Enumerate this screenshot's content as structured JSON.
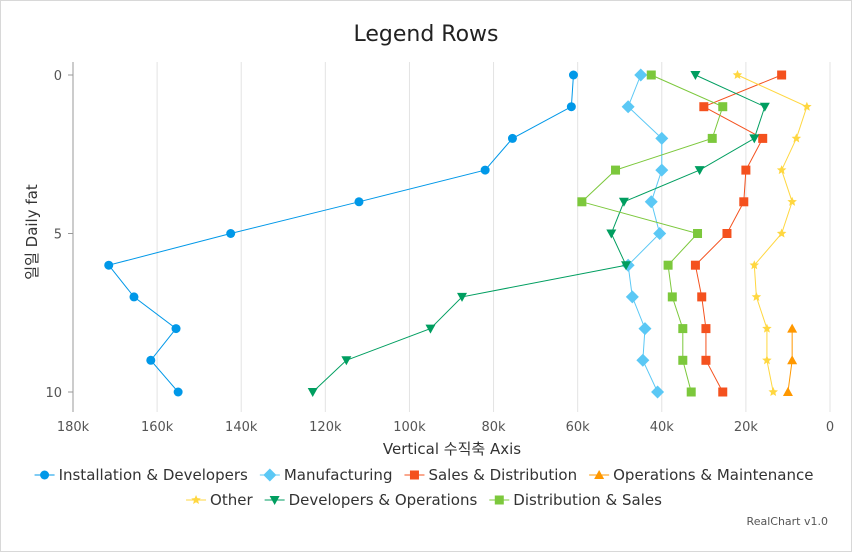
{
  "chart_data": {
    "type": "line",
    "title": "Legend Rows",
    "xlabel": "Vertical 수직축 Axis",
    "ylabel": "일일 Daily fat",
    "xlim": [
      180000,
      0
    ],
    "xreversed": true,
    "ylim": [
      0,
      10
    ],
    "yreversed": true,
    "xticks": [
      "180k",
      "160k",
      "140k",
      "120k",
      "100k",
      "80k",
      "60k",
      "40k",
      "20k",
      "0"
    ],
    "xtick_values": [
      180000,
      160000,
      140000,
      120000,
      100000,
      80000,
      60000,
      40000,
      20000,
      0
    ],
    "yticks": [
      "0",
      "5",
      "10"
    ],
    "ytick_values": [
      0,
      5,
      10
    ],
    "grid": "vertical",
    "legend_position": "bottom",
    "series": [
      {
        "name": "Installation & Developers",
        "color": "#0098e8",
        "marker": "circle",
        "points": [
          [
            61000,
            0
          ],
          [
            61500,
            1
          ],
          [
            75500,
            2
          ],
          [
            82000,
            3
          ],
          [
            112000,
            4
          ],
          [
            142500,
            5
          ],
          [
            171500,
            6
          ],
          [
            165500,
            7
          ],
          [
            155500,
            8
          ],
          [
            161500,
            9
          ],
          [
            155000,
            10
          ]
        ]
      },
      {
        "name": "Manufacturing",
        "color": "#5bc8f5",
        "marker": "diamond",
        "points": [
          [
            45000,
            0
          ],
          [
            48000,
            1
          ],
          [
            40000,
            2
          ],
          [
            40000,
            3
          ],
          [
            42500,
            4
          ],
          [
            40500,
            5
          ],
          [
            48000,
            6
          ],
          [
            47000,
            7
          ],
          [
            44000,
            8
          ],
          [
            44500,
            9
          ],
          [
            41000,
            10
          ]
        ]
      },
      {
        "name": "Sales & Distribution",
        "color": "#f4511e",
        "marker": "square",
        "points": [
          [
            11500,
            0
          ],
          [
            30000,
            1
          ],
          [
            16000,
            2
          ],
          [
            20000,
            3
          ],
          [
            20500,
            4
          ],
          [
            24500,
            5
          ],
          [
            32000,
            6
          ],
          [
            30500,
            7
          ],
          [
            29500,
            8
          ],
          [
            29500,
            9
          ],
          [
            25500,
            10
          ]
        ]
      },
      {
        "name": "Operations & Maintenance",
        "color": "#ff9800",
        "marker": "triangle-up",
        "points": [
          [
            9000,
            8
          ],
          [
            9000,
            9
          ],
          [
            10000,
            10
          ]
        ]
      },
      {
        "name": "Other",
        "color": "#ffd740",
        "marker": "star",
        "points": [
          [
            22000,
            0
          ],
          [
            5500,
            1
          ],
          [
            8000,
            2
          ],
          [
            11500,
            3
          ],
          [
            9000,
            4
          ],
          [
            11500,
            5
          ],
          [
            18000,
            6
          ],
          [
            17500,
            7
          ],
          [
            15000,
            8
          ],
          [
            15000,
            9
          ],
          [
            13500,
            10
          ]
        ]
      },
      {
        "name": "Developers & Operations",
        "color": "#009e60",
        "marker": "triangle-down",
        "points": [
          [
            32000,
            0
          ],
          [
            15500,
            1
          ],
          [
            18000,
            2
          ],
          [
            31000,
            3
          ],
          [
            49000,
            4
          ],
          [
            52000,
            5
          ],
          [
            48500,
            6
          ],
          [
            87500,
            7
          ],
          [
            95000,
            8
          ],
          [
            115000,
            9
          ],
          [
            123000,
            10
          ]
        ]
      },
      {
        "name": "Distribution & Sales",
        "color": "#7cc83c",
        "marker": "square",
        "points": [
          [
            42500,
            0
          ],
          [
            25500,
            1
          ],
          [
            28000,
            2
          ],
          [
            51000,
            3
          ],
          [
            59000,
            4
          ],
          [
            31500,
            5
          ],
          [
            38500,
            6
          ],
          [
            37500,
            7
          ],
          [
            35000,
            8
          ],
          [
            35000,
            9
          ],
          [
            33000,
            10
          ]
        ]
      }
    ]
  },
  "credit": "RealChart v1.0"
}
